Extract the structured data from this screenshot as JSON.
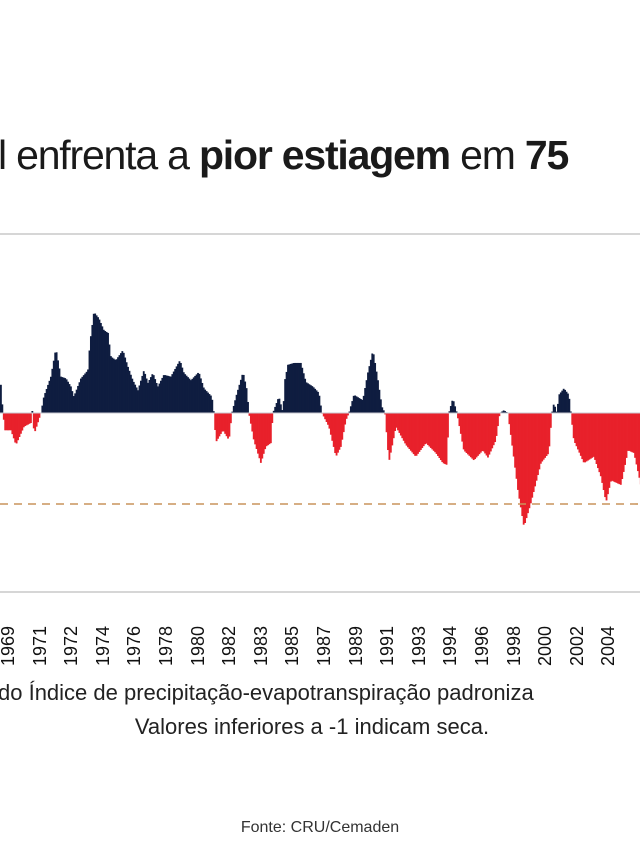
{
  "title": {
    "part1": "l enfrenta a ",
    "bold1": "pior estiagem",
    "part2": " em ",
    "bold2": "75"
  },
  "caption": {
    "line1": "do Índice de precipitação-evapotranspiração padroniza",
    "line2": "Valores inferiores a  -1 indicam seca."
  },
  "source": "Fonte: CRU/Cemaden",
  "chart_data": {
    "type": "bar",
    "xlabel": "",
    "ylabel": "",
    "xlim": [
      1968.53,
      2005.87
    ],
    "ylim": [
      -2,
      2
    ],
    "threshold": -1,
    "grid": false,
    "colors": {
      "positive": "#0f1d40",
      "negative": "#e8212b",
      "threshold": "#c9945c",
      "rule": "#d6d6d6"
    },
    "tick_labels": [
      "1969",
      "1971",
      "1972",
      "1974",
      "1976",
      "1978",
      "1980",
      "1982",
      "1983",
      "1985",
      "1987",
      "1989",
      "1991",
      "1993",
      "1994",
      "1996",
      "1998",
      "2000",
      "2002",
      "2004"
    ],
    "series": [
      {
        "points": [
          [
            1968.53,
            0.31
          ],
          [
            1968.65,
            0
          ],
          [
            1968.77,
            -0.19
          ],
          [
            1969.12,
            -0.19
          ],
          [
            1969.41,
            -0.35
          ],
          [
            1969.88,
            -0.15
          ],
          [
            1970.28,
            -0.11
          ],
          [
            1970.4,
            0.08
          ],
          [
            1970.46,
            -0.24
          ],
          [
            1970.87,
            0
          ],
          [
            1971.04,
            0.18
          ],
          [
            1971.45,
            0.4
          ],
          [
            1971.74,
            0.71
          ],
          [
            1972.03,
            0.4
          ],
          [
            1972.33,
            0.38
          ],
          [
            1972.62,
            0.29
          ],
          [
            1972.79,
            0.18
          ],
          [
            1973.2,
            0.38
          ],
          [
            1973.61,
            0.47
          ],
          [
            1973.73,
            0.77
          ],
          [
            1973.96,
            1.11
          ],
          [
            1974.25,
            1.04
          ],
          [
            1974.54,
            0.91
          ],
          [
            1974.78,
            0.88
          ],
          [
            1974.95,
            0.62
          ],
          [
            1975.24,
            0.58
          ],
          [
            1975.65,
            0.69
          ],
          [
            1975.94,
            0.51
          ],
          [
            1976.23,
            0.36
          ],
          [
            1976.53,
            0.25
          ],
          [
            1976.88,
            0.47
          ],
          [
            1977.11,
            0.33
          ],
          [
            1977.4,
            0.44
          ],
          [
            1977.69,
            0.29
          ],
          [
            1978.04,
            0.42
          ],
          [
            1978.45,
            0.4
          ],
          [
            1978.98,
            0.58
          ],
          [
            1979.21,
            0.44
          ],
          [
            1979.62,
            0.36
          ],
          [
            1980.08,
            0.45
          ],
          [
            1980.38,
            0.27
          ],
          [
            1980.84,
            0.18
          ],
          [
            1980.96,
            0
          ],
          [
            1981.08,
            -0.32
          ],
          [
            1981.49,
            -0.19
          ],
          [
            1981.84,
            -0.3
          ],
          [
            1982.01,
            0
          ],
          [
            1982.25,
            0.18
          ],
          [
            1982.66,
            0.45
          ],
          [
            1982.89,
            0.25
          ],
          [
            1983.0,
            0
          ],
          [
            1983.29,
            -0.3
          ],
          [
            1983.7,
            -0.55
          ],
          [
            1983.99,
            -0.37
          ],
          [
            1984.29,
            -0.33
          ],
          [
            1984.4,
            0
          ],
          [
            1984.75,
            0.18
          ],
          [
            1984.99,
            0
          ],
          [
            1985.1,
            0.36
          ],
          [
            1985.28,
            0.53
          ],
          [
            1985.63,
            0.55
          ],
          [
            1986.04,
            0.55
          ],
          [
            1986.33,
            0.34
          ],
          [
            1986.74,
            0.29
          ],
          [
            1987.09,
            0.22
          ],
          [
            1987.26,
            0
          ],
          [
            1987.67,
            -0.15
          ],
          [
            1988.08,
            -0.48
          ],
          [
            1988.37,
            -0.37
          ],
          [
            1988.66,
            -0.08
          ],
          [
            1988.84,
            0
          ],
          [
            1989.13,
            0.2
          ],
          [
            1989.65,
            0.14
          ],
          [
            1989.94,
            0.44
          ],
          [
            1990.24,
            0.69
          ],
          [
            1990.53,
            0.36
          ],
          [
            1990.76,
            0.07
          ],
          [
            1990.94,
            0
          ],
          [
            1991.17,
            -0.54
          ],
          [
            1991.58,
            -0.15
          ],
          [
            1992.16,
            -0.35
          ],
          [
            1992.74,
            -0.48
          ],
          [
            1993.33,
            -0.33
          ],
          [
            1993.91,
            -0.44
          ],
          [
            1994.32,
            -0.55
          ],
          [
            1994.55,
            -0.57
          ],
          [
            1994.67,
            0
          ],
          [
            1994.9,
            0.16
          ],
          [
            1995.14,
            0
          ],
          [
            1995.54,
            -0.41
          ],
          [
            1996.13,
            -0.52
          ],
          [
            1996.65,
            -0.41
          ],
          [
            1996.95,
            -0.49
          ],
          [
            1997.41,
            -0.3
          ],
          [
            1997.64,
            0
          ],
          [
            1997.88,
            0.03
          ],
          [
            1998.11,
            0
          ],
          [
            1998.4,
            -0.41
          ],
          [
            1998.7,
            -0.85
          ],
          [
            1999.05,
            -1.25
          ],
          [
            1999.45,
            -0.99
          ],
          [
            2000.04,
            -0.55
          ],
          [
            2000.5,
            -0.44
          ],
          [
            2000.68,
            0
          ],
          [
            2000.8,
            0.11
          ],
          [
            2000.97,
            0
          ],
          [
            2001.09,
            0.2
          ],
          [
            2001.38,
            0.27
          ],
          [
            2001.67,
            0.2
          ],
          [
            2001.79,
            0
          ],
          [
            2001.96,
            -0.3
          ],
          [
            2002.55,
            -0.55
          ],
          [
            2003.13,
            -0.48
          ],
          [
            2003.54,
            -0.7
          ],
          [
            2003.84,
            -0.98
          ],
          [
            2004.13,
            -0.74
          ],
          [
            2004.71,
            -0.79
          ],
          [
            2005.12,
            -0.41
          ],
          [
            2005.47,
            -0.44
          ],
          [
            2005.87,
            -0.79
          ]
        ]
      }
    ]
  }
}
